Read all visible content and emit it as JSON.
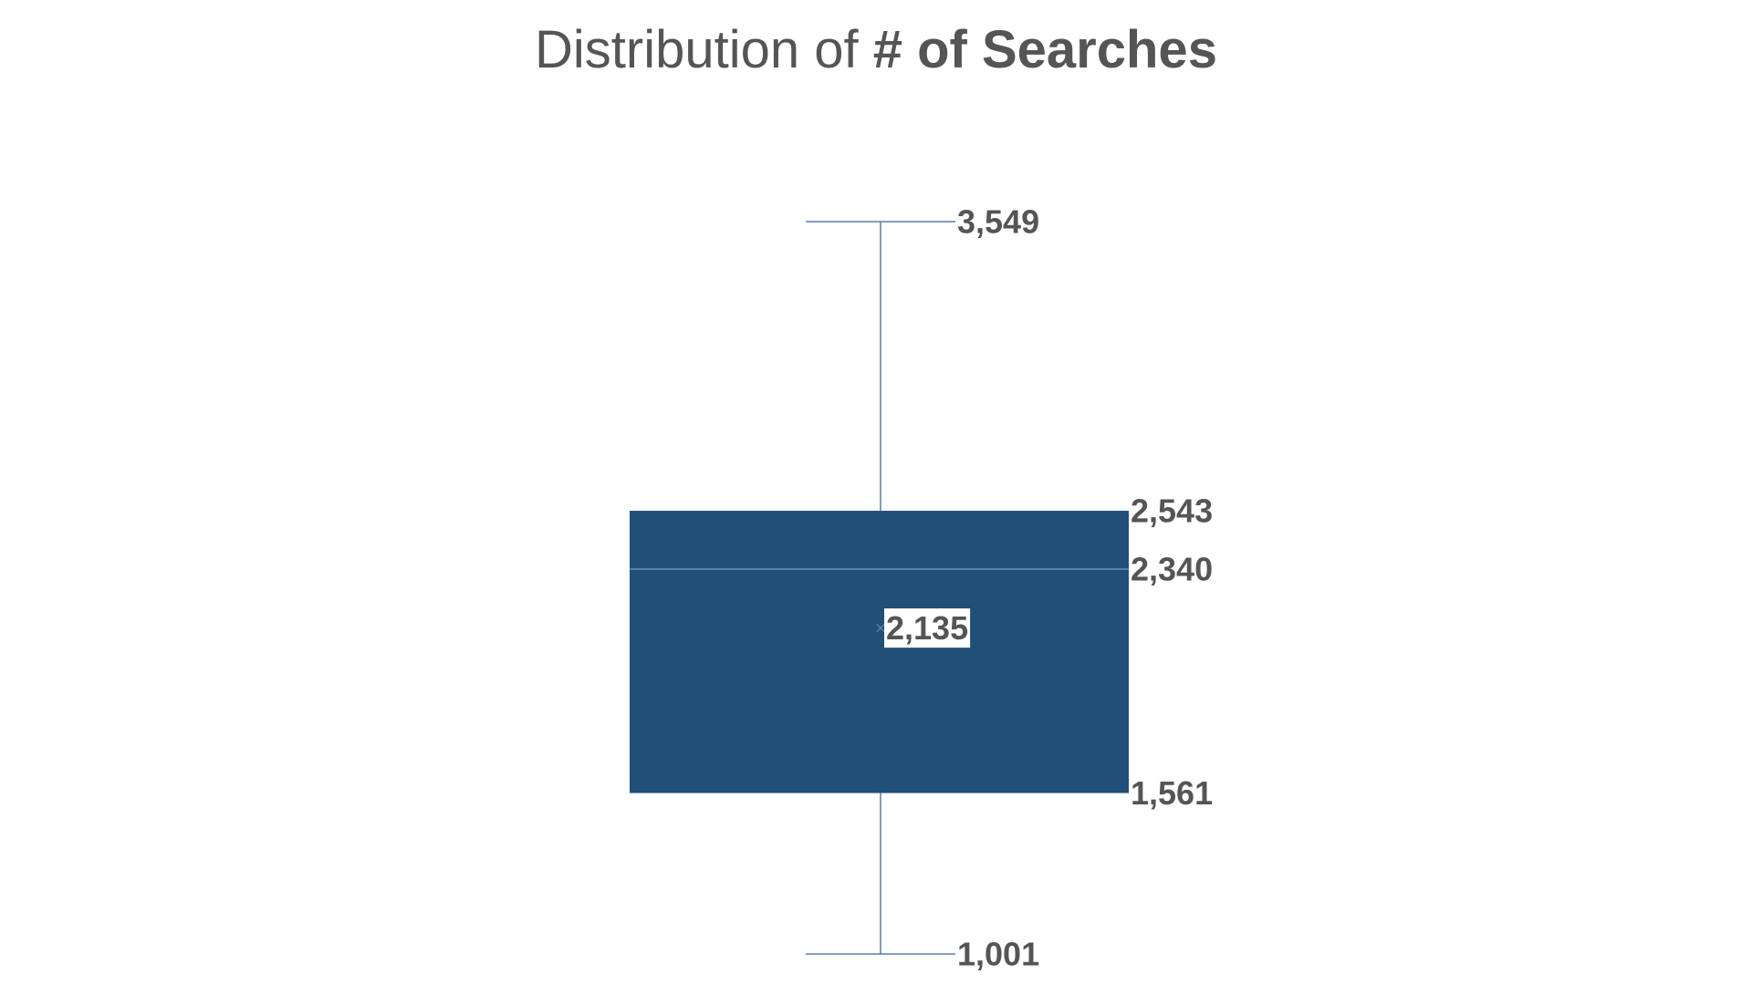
{
  "title_prefix": "Distribution of ",
  "title_bold": "# of Searches",
  "colors": {
    "box_fill": "#214f78",
    "whisker": "#5a7fa6",
    "median_line": "#6f8fb3",
    "label_text": "#555555",
    "mean_label_bg": "#ffffff"
  },
  "chart_data": {
    "type": "box",
    "title": "Distribution of # of Searches",
    "xlabel": "",
    "ylabel": "",
    "ylim": [
      1001,
      3549
    ],
    "series": [
      {
        "min": 1001,
        "q1": 1561,
        "median": 2340,
        "q3": 2543,
        "max": 3549,
        "mean": 2135
      }
    ],
    "labels": {
      "max": "3,549",
      "q3": "2,543",
      "median": "2,340",
      "mean": "2,135",
      "q1": "1,561",
      "min": "1,001"
    },
    "grid": false,
    "legend": "none"
  }
}
